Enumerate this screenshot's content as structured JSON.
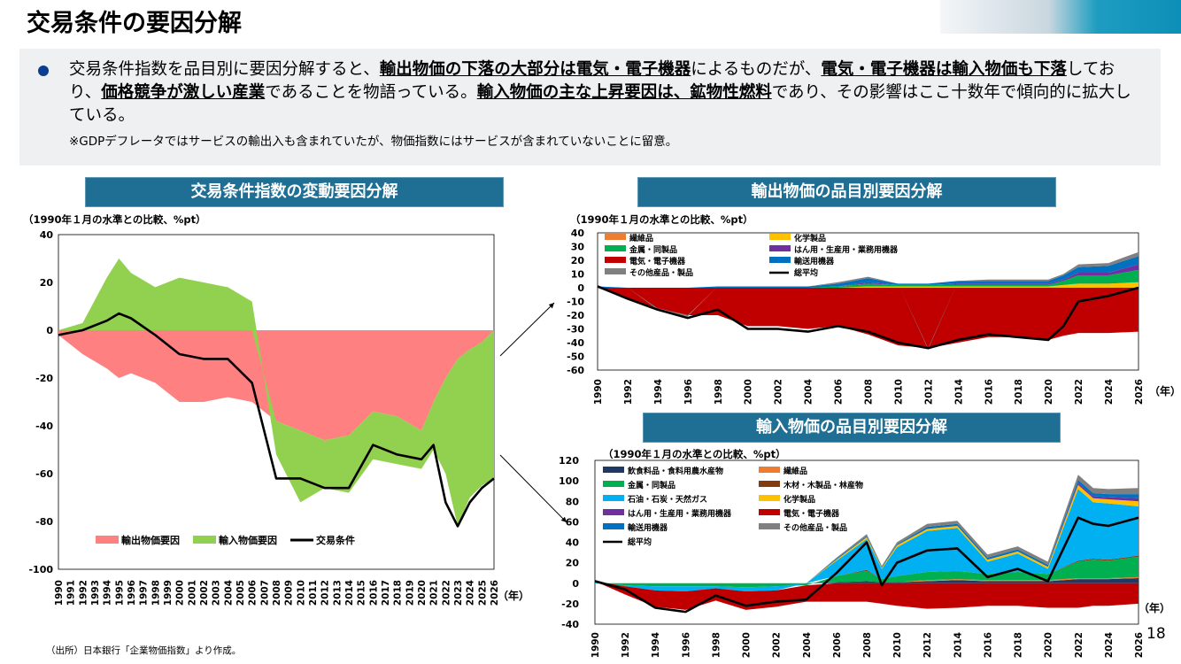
{
  "page": {
    "title": "交易条件の要因分解",
    "page_number": "18",
    "source": "（出所）日本銀行「企業物価指数」より作成。",
    "summary": [
      {
        "t": "交易条件指数を品目別に要因分解すると、",
        "b": false
      },
      {
        "t": "輸出物価の下落の大部分は電気・電子機器",
        "b": true
      },
      {
        "t": "によるものだが、",
        "b": false
      },
      {
        "t": "電気・電子機器は輸入物価も下落",
        "b": true
      },
      {
        "t": "しており、",
        "b": false
      },
      {
        "t": "価格競争が激しい産業",
        "b": true
      },
      {
        "t": "であることを物語っている。",
        "b": false
      },
      {
        "t": "輸入物価の主な上昇要因は、鉱物性燃料",
        "b": true
      },
      {
        "t": "であり、その影響はここ十数年で傾向的に拡大している。",
        "b": false
      }
    ],
    "note": "※GDPデフレータではサービスの輸出入も含まれていたが、物価指数にはサービスが含まれていないことに留意。",
    "year_unit": "（年）",
    "colors": {
      "header_bg": "#1f6f94",
      "summary_bg": "#eef0f2",
      "bullet": "#0b3e91"
    }
  },
  "charts": [
    {
      "header": "交易条件指数の変動要因分解",
      "unit_label": "（1990年１月の水準との比較、%pt）",
      "chart_data": {
        "type": "area",
        "ylim": [
          -100,
          40
        ],
        "yticks": [
          "40",
          "20",
          "0",
          "-20",
          "-40",
          "-60",
          "-80",
          "-100"
        ],
        "xticks": [
          "1990",
          "1991",
          "1992",
          "1993",
          "1994",
          "1995",
          "1996",
          "1997",
          "1998",
          "1999",
          "2000",
          "2001",
          "2002",
          "2003",
          "2004",
          "2005",
          "2006",
          "2007",
          "2008",
          "2009",
          "2010",
          "2011",
          "2012",
          "2013",
          "2014",
          "2015",
          "2016",
          "2017",
          "2018",
          "2019",
          "2020",
          "2021",
          "2022",
          "2023",
          "2024",
          "2025",
          "2026"
        ],
        "x": [
          1990,
          1992,
          1994,
          1995,
          1996,
          1998,
          2000,
          2002,
          2004,
          2006,
          2008,
          2010,
          2012,
          2014,
          2016,
          2018,
          2020,
          2021,
          2022,
          2023,
          2024,
          2025,
          2026
        ],
        "series": [
          {
            "name": "輸出物価要因",
            "kind": "area",
            "color": "#ff8080",
            "values": [
              -2,
              -10,
              -16,
              -20,
              -18,
              -22,
              -30,
              -30,
              -28,
              -30,
              -38,
              -42,
              -46,
              -44,
              -34,
              -36,
              -42,
              -30,
              -20,
              -12,
              -8,
              -5,
              0
            ]
          },
          {
            "name": "輸入物価要因",
            "kind": "area",
            "color": "#92d050",
            "values": [
              0,
              3,
              22,
              30,
              24,
              18,
              22,
              20,
              18,
              12,
              -14,
              -30,
              -20,
              -24,
              -20,
              -20,
              -16,
              -20,
              -40,
              -70,
              -62,
              -60,
              -62
            ]
          },
          {
            "name": "交易条件",
            "kind": "line",
            "color": "#000000",
            "values": [
              -2,
              0,
              4,
              7,
              5,
              -2,
              -10,
              -12,
              -12,
              -22,
              -62,
              -62,
              -66,
              -66,
              -48,
              -52,
              -54,
              -48,
              -72,
              -82,
              -72,
              -66,
              -62
            ]
          }
        ],
        "legend": "bottom"
      }
    },
    {
      "header": "輸出物価の品目別要因分解",
      "unit_label": "（1990年１月の水準との比較、%pt）",
      "chart_data": {
        "type": "area",
        "ylim": [
          -60,
          40
        ],
        "yticks": [
          "40",
          "30",
          "20",
          "10",
          "0",
          "-10",
          "-20",
          "-30",
          "-40",
          "-50",
          "-60"
        ],
        "xticks": [
          "1990",
          "1992",
          "1994",
          "1996",
          "1998",
          "2000",
          "2002",
          "2004",
          "2006",
          "2008",
          "2010",
          "2012",
          "2014",
          "2016",
          "2018",
          "2020",
          "2022",
          "2024",
          "2026"
        ],
        "x": [
          1990,
          1992,
          1994,
          1996,
          1998,
          2000,
          2002,
          2004,
          2006,
          2008,
          2010,
          2012,
          2014,
          2016,
          2018,
          2020,
          2021,
          2022,
          2024,
          2026
        ],
        "series": [
          {
            "name": "繊維品",
            "color": "#ed7d31",
            "values": [
              0,
              0,
              0,
              0,
              0,
              0,
              0,
              0,
              0,
              0,
              0,
              0,
              0,
              0,
              0,
              0,
              0,
              0,
              0,
              0
            ]
          },
          {
            "name": "化学製品",
            "color": "#ffc000",
            "values": [
              0,
              0,
              0,
              0,
              0,
              0,
              0,
              0,
              0,
              1,
              1,
              1,
              1,
              1,
              1,
              1,
              2,
              3,
              3,
              4
            ]
          },
          {
            "name": "金属・同製品",
            "color": "#00b050",
            "values": [
              0,
              0,
              0,
              0,
              0,
              0,
              0,
              0,
              1,
              2,
              1,
              1,
              1,
              1,
              1,
              1,
              3,
              6,
              6,
              9
            ]
          },
          {
            "name": "はん用・生産用・業務用機器",
            "color": "#7030a0",
            "values": [
              0,
              0,
              0,
              0,
              0,
              0,
              0,
              0,
              0,
              1,
              0,
              0,
              1,
              1,
              1,
              1,
              1,
              2,
              2,
              4
            ]
          },
          {
            "name": "電気・電子機器",
            "color": "#c00000",
            "values": [
              0,
              -8,
              -15,
              -20,
              -20,
              -28,
              -28,
              -30,
              -28,
              -34,
              -42,
              -44,
              -40,
              -36,
              -36,
              -38,
              -35,
              -33,
              -33,
              -32
            ]
          },
          {
            "name": "輸送用機器",
            "color": "#0070c0",
            "values": [
              1,
              0,
              0,
              0,
              1,
              1,
              1,
              1,
              2,
              3,
              1,
              1,
              2,
              2,
              2,
              2,
              3,
              4,
              5,
              6
            ]
          },
          {
            "name": "その他産品・製品",
            "color": "#808080",
            "values": [
              0,
              0,
              -1,
              -1,
              0,
              0,
              0,
              0,
              1,
              1,
              0,
              -1,
              0,
              1,
              1,
              1,
              1,
              2,
              2,
              3
            ]
          },
          {
            "name": "総平均",
            "kind": "line",
            "color": "#000000",
            "values": [
              1,
              -8,
              -16,
              -22,
              -16,
              -30,
              -30,
              -32,
              -28,
              -32,
              -40,
              -44,
              -38,
              -34,
              -36,
              -38,
              -28,
              -10,
              -6,
              0
            ]
          }
        ],
        "legend": "top-left"
      }
    },
    {
      "header": "輸入物価の品目別要因分解",
      "unit_label": "（1990年１月の水準との比較、%pt）",
      "chart_data": {
        "type": "area",
        "ylim": [
          -40,
          120
        ],
        "yticks": [
          "120",
          "100",
          "80",
          "60",
          "40",
          "20",
          "0",
          "-20",
          "-40"
        ],
        "xticks": [
          "1990",
          "1992",
          "1994",
          "1996",
          "1998",
          "2000",
          "2002",
          "2004",
          "2006",
          "2008",
          "2010",
          "2012",
          "2014",
          "2016",
          "2018",
          "2020",
          "2022",
          "2024",
          "2026"
        ],
        "x": [
          1990,
          1992,
          1994,
          1996,
          1998,
          2000,
          2002,
          2004,
          2006,
          2008,
          2009,
          2010,
          2012,
          2014,
          2016,
          2018,
          2020,
          2022,
          2023,
          2024,
          2026
        ],
        "series": [
          {
            "name": "飲食料品・食料用農水産物",
            "color": "#1f3864",
            "values": [
              0,
              0,
              0,
              0,
              0,
              0,
              0,
              0,
              1,
              2,
              1,
              1,
              2,
              3,
              2,
              2,
              2,
              4,
              4,
              4,
              5
            ]
          },
          {
            "name": "繊維品",
            "color": "#ed7d31",
            "values": [
              0,
              0,
              0,
              0,
              0,
              0,
              0,
              0,
              0,
              0,
              0,
              0,
              1,
              1,
              1,
              1,
              1,
              1,
              1,
              1,
              1
            ]
          },
          {
            "name": "金属・同製品",
            "color": "#00b050",
            "values": [
              0,
              -2,
              -3,
              -3,
              -3,
              -4,
              -3,
              -2,
              6,
              10,
              3,
              6,
              8,
              8,
              6,
              8,
              6,
              16,
              18,
              17,
              20
            ]
          },
          {
            "name": "木材・木製品・林産物",
            "color": "#843c0c",
            "values": [
              0,
              0,
              0,
              0,
              0,
              0,
              0,
              0,
              0,
              1,
              0,
              0,
              0,
              0,
              0,
              0,
              0,
              1,
              1,
              1,
              1
            ]
          },
          {
            "name": "石油・石炭・天然ガス",
            "color": "#00b0f0",
            "values": [
              2,
              -1,
              -4,
              -5,
              -2,
              -4,
              -4,
              0,
              15,
              30,
              10,
              28,
              40,
              42,
              12,
              18,
              5,
              70,
              55,
              55,
              48
            ]
          },
          {
            "name": "化学製品",
            "color": "#ffc000",
            "values": [
              0,
              0,
              0,
              0,
              0,
              0,
              0,
              0,
              1,
              2,
              1,
              2,
              2,
              2,
              2,
              2,
              2,
              4,
              4,
              4,
              5
            ]
          },
          {
            "name": "はん用・生産用・業務用機器",
            "color": "#7030a0",
            "values": [
              0,
              0,
              0,
              0,
              0,
              0,
              0,
              0,
              0,
              0,
              0,
              0,
              0,
              0,
              0,
              0,
              0,
              2,
              2,
              2,
              3
            ]
          },
          {
            "name": "電気・電子機器",
            "color": "#c00000",
            "values": [
              0,
              -8,
              -16,
              -18,
              -12,
              -18,
              -16,
              -16,
              -18,
              -18,
              -20,
              -22,
              -25,
              -24,
              -22,
              -22,
              -24,
              -24,
              -22,
              -22,
              -20
            ]
          },
          {
            "name": "輸送用機器",
            "color": "#0070c0",
            "values": [
              0,
              0,
              0,
              0,
              0,
              0,
              0,
              0,
              1,
              1,
              1,
              1,
              2,
              2,
              2,
              2,
              2,
              3,
              3,
              3,
              4
            ]
          },
          {
            "name": "その他産品・製品",
            "color": "#808080",
            "values": [
              0,
              0,
              0,
              0,
              0,
              0,
              0,
              0,
              1,
              2,
              1,
              2,
              3,
              3,
              3,
              3,
              3,
              5,
              5,
              5,
              6
            ]
          },
          {
            "name": "総平均",
            "kind": "line",
            "color": "#000000",
            "values": [
              2,
              -6,
              -24,
              -28,
              -12,
              -22,
              -18,
              -16,
              10,
              40,
              -2,
              20,
              32,
              34,
              6,
              14,
              2,
              64,
              58,
              56,
              64
            ]
          }
        ],
        "legend": "top-left"
      }
    }
  ]
}
